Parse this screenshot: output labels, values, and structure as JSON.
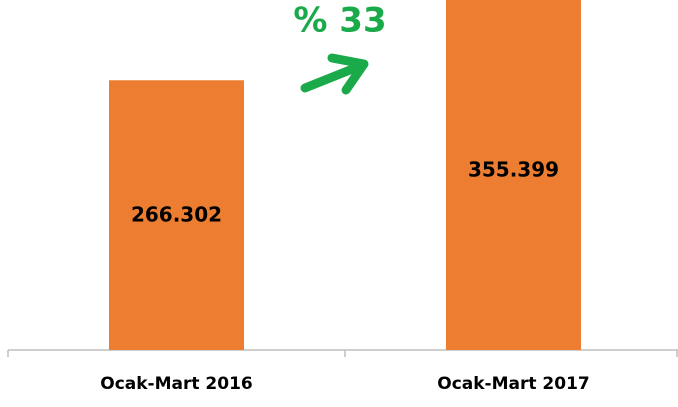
{
  "chart_data": {
    "type": "bar",
    "categories": [
      "Ocak-Mart 2016",
      "Ocak-Mart 2017"
    ],
    "values": [
      266302,
      355399
    ],
    "value_labels": [
      "266.302",
      "355.399"
    ],
    "color": "#ed7d31",
    "annotation": "% 33"
  }
}
